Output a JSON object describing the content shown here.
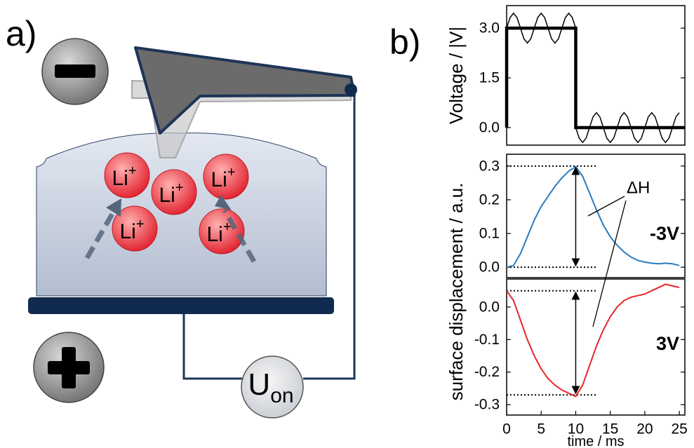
{
  "panel_labels": [
    "a)",
    "b)"
  ],
  "diagram": {
    "ions": [
      {
        "text": "Li",
        "charge": "+"
      },
      {
        "text": "Li",
        "charge": "+"
      },
      {
        "text": "Li",
        "charge": "+"
      },
      {
        "text": "Li",
        "charge": "+"
      },
      {
        "text": "Li",
        "charge": "+"
      }
    ],
    "source": {
      "text": "U",
      "subscript": "on"
    }
  },
  "chart_data": [
    {
      "type": "line",
      "ylabel": "Voltage / |V|",
      "xlim": [
        0,
        25.8
      ],
      "ylim": [
        -0.53,
        3.68
      ],
      "yticks": [
        {
          "value": 0,
          "label": "0.0"
        },
        1.5,
        {
          "value": 3,
          "label": "3.0"
        }
      ],
      "series": [
        {
          "color": "#000000",
          "line_width": 4.5,
          "x": [
            0,
            0,
            10,
            10,
            25.8
          ],
          "values": [
            0,
            3,
            3,
            0,
            0
          ]
        },
        {
          "color": "#000000",
          "line_width": 1.5,
          "x": [
            0,
            0.5,
            1,
            1.5,
            2,
            2.5,
            3,
            3.5,
            4,
            4.5,
            5,
            5.5,
            6,
            6.5,
            7,
            7.5,
            8,
            8.5,
            9,
            9.5,
            10,
            10,
            10.5,
            11,
            11.5,
            12,
            12.5,
            13,
            13.5,
            14,
            14.5,
            15,
            15.5,
            16,
            16.5,
            17,
            17.5,
            18,
            18.5,
            19,
            19.5,
            20,
            20.5,
            21,
            21.5,
            22,
            22.5,
            23,
            23.5,
            24,
            24.5,
            25
          ],
          "values": [
            3,
            3.32,
            3.45,
            3.32,
            3,
            2.68,
            2.55,
            2.68,
            3,
            3.32,
            3.45,
            3.32,
            3,
            2.68,
            2.55,
            2.68,
            3,
            3.32,
            3.45,
            3.32,
            3,
            0,
            -0.32,
            -0.45,
            -0.32,
            0,
            0.32,
            0.45,
            0.32,
            0,
            -0.32,
            -0.45,
            -0.32,
            0,
            0.32,
            0.45,
            0.32,
            0,
            -0.32,
            -0.45,
            -0.32,
            0,
            0.32,
            0.45,
            0.32,
            0,
            -0.32,
            -0.45,
            -0.32,
            0,
            0.32,
            0.45
          ]
        }
      ]
    },
    {
      "type": "line",
      "ylabel": "surface displacement / a.u.",
      "xlim": [
        0,
        25.8
      ],
      "ylim": [
        -0.031,
        0.335
      ],
      "yticks": [
        {
          "value": 0,
          "label": "0.0"
        },
        0.1,
        0.2,
        0.3
      ],
      "x": [
        0,
        1,
        2,
        3,
        4,
        5,
        6,
        7,
        8,
        9,
        10,
        11,
        12,
        13,
        14,
        15,
        16,
        17,
        18,
        19,
        20,
        21,
        22,
        23,
        24,
        25
      ],
      "series": [
        {
          "color": "#2a7bbf",
          "line_width": 2,
          "values": [
            0,
            0.005,
            0.04,
            0.09,
            0.14,
            0.18,
            0.21,
            0.24,
            0.265,
            0.285,
            0.298,
            0.27,
            0.22,
            0.17,
            0.125,
            0.09,
            0.065,
            0.045,
            0.03,
            0.02,
            0.015,
            0.012,
            0.01,
            0.012,
            0.01,
            0.005
          ]
        }
      ],
      "hlines": [
        0.3,
        0
      ],
      "arrow": {
        "x": 10,
        "from": 0,
        "to": 0.3
      },
      "annotation": "ΔH",
      "label": {
        "text": "-3V",
        "color": "#1f5fc8"
      }
    },
    {
      "type": "line",
      "xlabel": "time / ms",
      "xlim": [
        0,
        25.8
      ],
      "ylim": [
        -0.332,
        0.086
      ],
      "xticks": [
        0,
        5,
        10,
        15,
        20,
        25
      ],
      "yticks": [
        {
          "value": 0,
          "label": "0.0"
        },
        -0.1,
        -0.2,
        -0.3
      ],
      "x": [
        0,
        1,
        2,
        3,
        4,
        5,
        6,
        7,
        8,
        9,
        10,
        11,
        12,
        13,
        14,
        15,
        16,
        17,
        18,
        19,
        20,
        21,
        22,
        23,
        24,
        25
      ],
      "series": [
        {
          "color": "#e8262a",
          "line_width": 2,
          "values": [
            0.05,
            0.02,
            -0.04,
            -0.1,
            -0.15,
            -0.19,
            -0.22,
            -0.24,
            -0.255,
            -0.265,
            -0.275,
            -0.24,
            -0.18,
            -0.12,
            -0.07,
            -0.03,
            0,
            0.02,
            0.03,
            0.035,
            0.04,
            0.05,
            0.06,
            0.07,
            0.065,
            0.06
          ]
        }
      ],
      "hlines": [
        0.05,
        -0.27
      ],
      "arrow": {
        "x": 10,
        "from": -0.27,
        "to": 0.05
      },
      "label": {
        "text": "3V",
        "color": "#e8262a"
      }
    }
  ]
}
